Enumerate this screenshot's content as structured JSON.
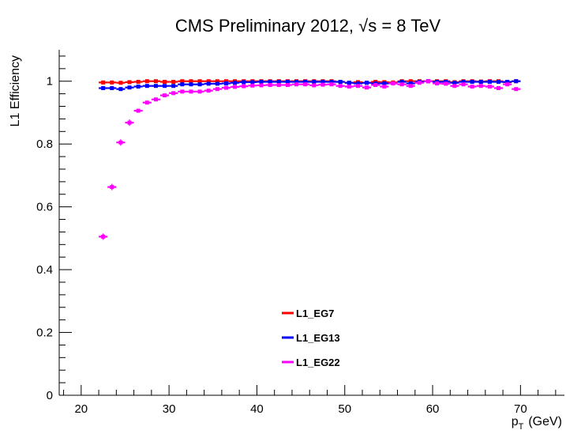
{
  "chart_data": {
    "type": "scatter",
    "title": "CMS Preliminary 2012,  √s = 8 TeV",
    "xlabel": "p_T (GeV)",
    "xlabel_main": "p",
    "xlabel_sub": "T",
    "xlabel_unit": "(GeV)",
    "ylabel": "L1 Efficiency",
    "xlim": [
      17.5,
      75
    ],
    "ylim": [
      0,
      1.1
    ],
    "x_ticks": [
      20,
      30,
      40,
      50,
      60,
      70
    ],
    "y_ticks": [
      0,
      0.2,
      0.4,
      0.6,
      0.8,
      1
    ],
    "y_tick_labels": [
      "0",
      "0.2",
      "0.4",
      "0.6",
      "0.8",
      "1"
    ],
    "grid": false,
    "legend_position": "bottom-center",
    "bin_width": 1,
    "x": [
      22.5,
      23.5,
      24.5,
      25.5,
      26.5,
      27.5,
      28.5,
      29.5,
      30.5,
      31.5,
      32.5,
      33.5,
      34.5,
      35.5,
      36.5,
      37.5,
      38.5,
      39.5,
      40.5,
      41.5,
      42.5,
      43.5,
      44.5,
      45.5,
      46.5,
      47.5,
      48.5,
      49.5,
      50.5,
      51.5,
      52.5,
      53.5,
      54.5,
      55.5,
      56.5,
      57.5,
      58.5,
      59.5,
      60.5,
      61.5,
      62.5,
      63.5,
      64.5,
      65.5,
      66.5,
      67.5,
      68.5,
      69.5
    ],
    "series": [
      {
        "name": "L1_EG7",
        "color": "#ff0000",
        "values": [
          0.996,
          0.996,
          0.995,
          0.997,
          0.998,
          1.0,
          1.0,
          0.998,
          0.998,
          1.0,
          1.0,
          1.0,
          1.0,
          1.0,
          1.0,
          1.0,
          1.0,
          1.0,
          1.0,
          1.0,
          1.0,
          1.0,
          1.0,
          1.0,
          1.0,
          1.0,
          1.0,
          0.998,
          0.995,
          0.997,
          0.995,
          0.998,
          0.997,
          0.996,
          1.0,
          1.0,
          1.0,
          1.0,
          1.0,
          1.0,
          0.997,
          1.0,
          1.0,
          0.999,
          1.0,
          1.0,
          0.997,
          1.0
        ]
      },
      {
        "name": "L1_EG13",
        "color": "#0000ff",
        "values": [
          0.978,
          0.978,
          0.975,
          0.98,
          0.983,
          0.985,
          0.985,
          0.985,
          0.985,
          0.99,
          0.99,
          0.99,
          0.992,
          0.992,
          0.993,
          0.995,
          0.997,
          0.997,
          0.998,
          0.998,
          0.998,
          0.998,
          0.998,
          0.998,
          0.998,
          0.998,
          0.998,
          0.998,
          0.995,
          0.993,
          0.995,
          0.993,
          0.993,
          0.993,
          0.998,
          0.993,
          0.998,
          1.0,
          0.998,
          0.998,
          0.995,
          0.998,
          0.998,
          0.998,
          0.998,
          0.998,
          0.998,
          1.0
        ]
      },
      {
        "name": "L1_EG22",
        "color": "#ff00ff",
        "values": [
          0.505,
          0.663,
          0.805,
          0.868,
          0.906,
          0.932,
          0.942,
          0.955,
          0.962,
          0.967,
          0.967,
          0.967,
          0.97,
          0.975,
          0.979,
          0.982,
          0.984,
          0.986,
          0.987,
          0.988,
          0.988,
          0.988,
          0.99,
          0.99,
          0.987,
          0.989,
          0.99,
          0.985,
          0.983,
          0.985,
          0.98,
          0.988,
          0.983,
          0.993,
          0.99,
          0.985,
          0.995,
          1.0,
          0.993,
          0.992,
          0.985,
          0.99,
          0.983,
          0.985,
          0.983,
          0.978,
          0.99,
          0.975
        ]
      }
    ]
  }
}
